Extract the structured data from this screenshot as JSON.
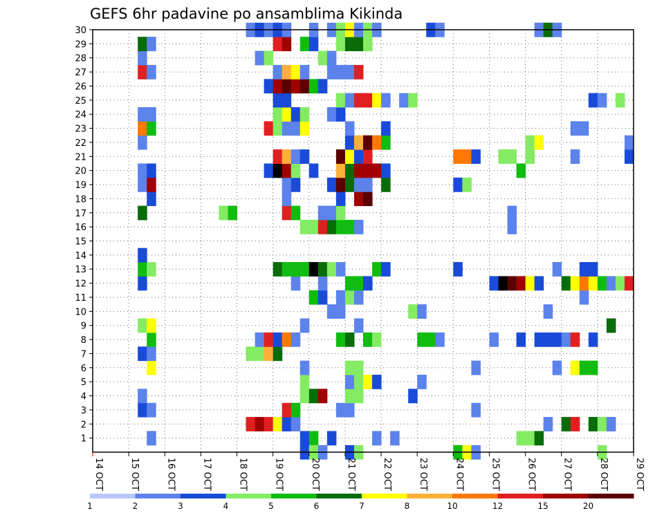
{
  "chart_data": {
    "type": "heatmap",
    "title": "GEFS 6hr padavine po ansamblima Kikinda",
    "xlabel": "",
    "ylabel": "",
    "x_ticks": [
      "14 OCT",
      "15 OCT",
      "16 OCT",
      "17 OCT",
      "18 OCT",
      "19 OCT",
      "20 OCT",
      "21 OCT",
      "22 OCT",
      "23 OCT",
      "24 OCT",
      "25 OCT",
      "26 OCT",
      "27 OCT",
      "28 OCT",
      "29 OCT"
    ],
    "y_ticks": [
      1,
      2,
      3,
      4,
      5,
      6,
      7,
      8,
      9,
      10,
      11,
      12,
      13,
      14,
      15,
      16,
      17,
      18,
      19,
      20,
      21,
      22,
      23,
      24,
      25,
      26,
      27,
      28,
      29,
      30
    ],
    "x_range": [
      0,
      60
    ],
    "y_range": [
      0,
      30
    ],
    "steps_per_day": 4,
    "grid": true,
    "legend_position": "bottom",
    "colorbar": {
      "labels": [
        "1",
        "2",
        "3",
        "4",
        "5",
        "6",
        "7",
        "8",
        "10",
        "12",
        "15",
        "20"
      ],
      "colors": [
        "#b8c8f8",
        "#5c82ec",
        "#1a4bd8",
        "#84ec62",
        "#10bc10",
        "#086c08",
        "#ffff00",
        "#ffb038",
        "#ff7800",
        "#e02020",
        "#a00000",
        "#5a0000"
      ]
    },
    "cells": [
      [
        6,
        1,
        1
      ],
      [
        23,
        1,
        2
      ],
      [
        24,
        1,
        4
      ],
      [
        26,
        1,
        2
      ],
      [
        31,
        1,
        1
      ],
      [
        33,
        1,
        1
      ],
      [
        47,
        1,
        3
      ],
      [
        48,
        1,
        3
      ],
      [
        49,
        1,
        5
      ],
      [
        17,
        2,
        9
      ],
      [
        18,
        2,
        10
      ],
      [
        19,
        2,
        9
      ],
      [
        20,
        2,
        6
      ],
      [
        21,
        2,
        2
      ],
      [
        22,
        2,
        1
      ],
      [
        50,
        2,
        1
      ],
      [
        52,
        2,
        5
      ],
      [
        53,
        2,
        9
      ],
      [
        55,
        2,
        5
      ],
      [
        56,
        2,
        3
      ],
      [
        57,
        2,
        1
      ],
      [
        5,
        3,
        2
      ],
      [
        6,
        3,
        1
      ],
      [
        21,
        3,
        9
      ],
      [
        22,
        3,
        4
      ],
      [
        27,
        3,
        1
      ],
      [
        28,
        3,
        1
      ],
      [
        42,
        3,
        1
      ],
      [
        5,
        4,
        1
      ],
      [
        23,
        4,
        3
      ],
      [
        24,
        4,
        5
      ],
      [
        25,
        4,
        10
      ],
      [
        28,
        4,
        3
      ],
      [
        29,
        4,
        3
      ],
      [
        35,
        4,
        2
      ],
      [
        23,
        5,
        3
      ],
      [
        28,
        5,
        1
      ],
      [
        29,
        5,
        3
      ],
      [
        30,
        5,
        6
      ],
      [
        31,
        5,
        2
      ],
      [
        36,
        5,
        1
      ],
      [
        6,
        6,
        6
      ],
      [
        23,
        6,
        1
      ],
      [
        28,
        6,
        3
      ],
      [
        29,
        6,
        3
      ],
      [
        42,
        6,
        1
      ],
      [
        51,
        6,
        1
      ],
      [
        53,
        6,
        6
      ],
      [
        54,
        6,
        4
      ],
      [
        55,
        6,
        4
      ],
      [
        5,
        7,
        2
      ],
      [
        6,
        7,
        1
      ],
      [
        17,
        7,
        3
      ],
      [
        18,
        7,
        3
      ],
      [
        19,
        7,
        7
      ],
      [
        20,
        7,
        5
      ],
      [
        6,
        8,
        4
      ],
      [
        18,
        8,
        1
      ],
      [
        19,
        8,
        9
      ],
      [
        20,
        8,
        2
      ],
      [
        21,
        8,
        8
      ],
      [
        22,
        8,
        1
      ],
      [
        27,
        8,
        4
      ],
      [
        28,
        8,
        5
      ],
      [
        30,
        8,
        4
      ],
      [
        31,
        8,
        3
      ],
      [
        36,
        8,
        4
      ],
      [
        37,
        8,
        4
      ],
      [
        38,
        8,
        1
      ],
      [
        44,
        8,
        1
      ],
      [
        47,
        8,
        2
      ],
      [
        49,
        8,
        2
      ],
      [
        50,
        8,
        2
      ],
      [
        51,
        8,
        2
      ],
      [
        52,
        8,
        1
      ],
      [
        53,
        8,
        9
      ],
      [
        55,
        8,
        2
      ],
      [
        5,
        9,
        3
      ],
      [
        6,
        9,
        6
      ],
      [
        23,
        9,
        1
      ],
      [
        29,
        9,
        1
      ],
      [
        57,
        9,
        5
      ],
      [
        26,
        10,
        1
      ],
      [
        27,
        10,
        1
      ],
      [
        35,
        10,
        3
      ],
      [
        36,
        10,
        1
      ],
      [
        50,
        10,
        1
      ],
      [
        24,
        11,
        4
      ],
      [
        25,
        11,
        2
      ],
      [
        27,
        11,
        1
      ],
      [
        28,
        11,
        3
      ],
      [
        29,
        11,
        1
      ],
      [
        54,
        11,
        1
      ],
      [
        5,
        12,
        2
      ],
      [
        22,
        12,
        1
      ],
      [
        25,
        12,
        1
      ],
      [
        28,
        12,
        4
      ],
      [
        29,
        12,
        4
      ],
      [
        30,
        12,
        2
      ],
      [
        44,
        12,
        2
      ],
      [
        45,
        12,
        12
      ],
      [
        46,
        12,
        11
      ],
      [
        47,
        12,
        10
      ],
      [
        48,
        12,
        6
      ],
      [
        49,
        12,
        2
      ],
      [
        52,
        12,
        5
      ],
      [
        53,
        12,
        6
      ],
      [
        54,
        12,
        8
      ],
      [
        55,
        12,
        6
      ],
      [
        56,
        12,
        4
      ],
      [
        57,
        12,
        1
      ],
      [
        58,
        12,
        3
      ],
      [
        59,
        12,
        9
      ],
      [
        5,
        13,
        4
      ],
      [
        6,
        13,
        3
      ],
      [
        20,
        13,
        5
      ],
      [
        21,
        13,
        4
      ],
      [
        22,
        13,
        4
      ],
      [
        23,
        13,
        4
      ],
      [
        24,
        13,
        12
      ],
      [
        25,
        13,
        5
      ],
      [
        26,
        13,
        3
      ],
      [
        27,
        13,
        1
      ],
      [
        31,
        13,
        4
      ],
      [
        32,
        13,
        2
      ],
      [
        40,
        13,
        2
      ],
      [
        51,
        13,
        1
      ],
      [
        54,
        13,
        2
      ],
      [
        55,
        13,
        2
      ],
      [
        5,
        14,
        2
      ],
      [
        23,
        16,
        3
      ],
      [
        24,
        16,
        3
      ],
      [
        25,
        16,
        9
      ],
      [
        26,
        16,
        5
      ],
      [
        27,
        16,
        4
      ],
      [
        28,
        16,
        4
      ],
      [
        29,
        16,
        1
      ],
      [
        46,
        16,
        1
      ],
      [
        5,
        17,
        5
      ],
      [
        14,
        17,
        3
      ],
      [
        15,
        17,
        4
      ],
      [
        21,
        17,
        9
      ],
      [
        22,
        17,
        4
      ],
      [
        25,
        17,
        1
      ],
      [
        26,
        17,
        1
      ],
      [
        27,
        17,
        3
      ],
      [
        46,
        17,
        1
      ],
      [
        6,
        18,
        2
      ],
      [
        21,
        18,
        1
      ],
      [
        27,
        18,
        2
      ],
      [
        29,
        18,
        10
      ],
      [
        30,
        18,
        11
      ],
      [
        5,
        19,
        1
      ],
      [
        6,
        19,
        10
      ],
      [
        21,
        19,
        1
      ],
      [
        22,
        19,
        2
      ],
      [
        26,
        19,
        2
      ],
      [
        27,
        19,
        11
      ],
      [
        28,
        19,
        5
      ],
      [
        29,
        19,
        1
      ],
      [
        30,
        19,
        1
      ],
      [
        32,
        19,
        5
      ],
      [
        40,
        19,
        2
      ],
      [
        41,
        19,
        3
      ],
      [
        5,
        20,
        1
      ],
      [
        6,
        20,
        2
      ],
      [
        19,
        20,
        2
      ],
      [
        20,
        20,
        12
      ],
      [
        21,
        20,
        10
      ],
      [
        22,
        20,
        3
      ],
      [
        24,
        20,
        2
      ],
      [
        27,
        20,
        7
      ],
      [
        28,
        20,
        5
      ],
      [
        29,
        20,
        10
      ],
      [
        30,
        20,
        10
      ],
      [
        31,
        20,
        10
      ],
      [
        32,
        20,
        2
      ],
      [
        47,
        20,
        4
      ],
      [
        20,
        21,
        9
      ],
      [
        21,
        21,
        7
      ],
      [
        22,
        21,
        1
      ],
      [
        23,
        21,
        2
      ],
      [
        27,
        21,
        11
      ],
      [
        28,
        21,
        6
      ],
      [
        29,
        21,
        2
      ],
      [
        30,
        21,
        9
      ],
      [
        40,
        21,
        8
      ],
      [
        41,
        21,
        8
      ],
      [
        42,
        21,
        2
      ],
      [
        45,
        21,
        3
      ],
      [
        46,
        21,
        3
      ],
      [
        48,
        21,
        3
      ],
      [
        53,
        21,
        1
      ],
      [
        59,
        21,
        2
      ],
      [
        5,
        22,
        1
      ],
      [
        28,
        22,
        2
      ],
      [
        29,
        22,
        7
      ],
      [
        30,
        22,
        11
      ],
      [
        31,
        22,
        8
      ],
      [
        32,
        22,
        4
      ],
      [
        48,
        22,
        3
      ],
      [
        49,
        22,
        6
      ],
      [
        59,
        22,
        1
      ],
      [
        5,
        23,
        8
      ],
      [
        6,
        23,
        4
      ],
      [
        19,
        23,
        9
      ],
      [
        20,
        23,
        3
      ],
      [
        21,
        23,
        1
      ],
      [
        22,
        23,
        1
      ],
      [
        23,
        23,
        6
      ],
      [
        28,
        23,
        1
      ],
      [
        32,
        23,
        2
      ],
      [
        53,
        23,
        1
      ],
      [
        54,
        23,
        1
      ],
      [
        5,
        24,
        1
      ],
      [
        6,
        24,
        1
      ],
      [
        20,
        24,
        3
      ],
      [
        21,
        24,
        6
      ],
      [
        22,
        24,
        2
      ],
      [
        23,
        24,
        3
      ],
      [
        26,
        24,
        1
      ],
      [
        27,
        24,
        2
      ],
      [
        20,
        25,
        2
      ],
      [
        21,
        25,
        2
      ],
      [
        27,
        25,
        3
      ],
      [
        28,
        25,
        1
      ],
      [
        29,
        25,
        9
      ],
      [
        30,
        25,
        9
      ],
      [
        31,
        25,
        6
      ],
      [
        32,
        25,
        1
      ],
      [
        34,
        25,
        1
      ],
      [
        35,
        25,
        3
      ],
      [
        55,
        25,
        2
      ],
      [
        56,
        25,
        1
      ],
      [
        58,
        25,
        3
      ],
      [
        19,
        26,
        2
      ],
      [
        20,
        26,
        10
      ],
      [
        21,
        26,
        11
      ],
      [
        22,
        26,
        10
      ],
      [
        23,
        26,
        11
      ],
      [
        24,
        26,
        4
      ],
      [
        25,
        26,
        2
      ],
      [
        5,
        27,
        9
      ],
      [
        6,
        27,
        1
      ],
      [
        20,
        27,
        1
      ],
      [
        21,
        27,
        7
      ],
      [
        22,
        27,
        6
      ],
      [
        23,
        27,
        1
      ],
      [
        26,
        27,
        1
      ],
      [
        27,
        27,
        1
      ],
      [
        28,
        27,
        1
      ],
      [
        29,
        27,
        9
      ],
      [
        5,
        28,
        1
      ],
      [
        18,
        28,
        1
      ],
      [
        19,
        28,
        3
      ],
      [
        25,
        28,
        3
      ],
      [
        26,
        28,
        1
      ],
      [
        5,
        29,
        5
      ],
      [
        6,
        29,
        1
      ],
      [
        20,
        29,
        9
      ],
      [
        21,
        29,
        10
      ],
      [
        23,
        29,
        4
      ],
      [
        24,
        29,
        2
      ],
      [
        27,
        29,
        3
      ],
      [
        28,
        29,
        5
      ],
      [
        29,
        29,
        5
      ],
      [
        30,
        29,
        3
      ],
      [
        17,
        30,
        1
      ],
      [
        18,
        30,
        2
      ],
      [
        19,
        30,
        1
      ],
      [
        20,
        30,
        2
      ],
      [
        21,
        30,
        1
      ],
      [
        24,
        30,
        1
      ],
      [
        26,
        30,
        1
      ],
      [
        27,
        30,
        3
      ],
      [
        28,
        30,
        6
      ],
      [
        29,
        30,
        1
      ],
      [
        30,
        30,
        3
      ],
      [
        31,
        30,
        1
      ],
      [
        37,
        30,
        2
      ],
      [
        38,
        30,
        1
      ],
      [
        49,
        30,
        1
      ],
      [
        50,
        30,
        5
      ],
      [
        51,
        30,
        1
      ],
      [
        23,
        0,
        2
      ],
      [
        24,
        0,
        3
      ],
      [
        25,
        0,
        1
      ],
      [
        28,
        0,
        2
      ],
      [
        29,
        0,
        3
      ],
      [
        40,
        0,
        4
      ],
      [
        41,
        0,
        6
      ],
      [
        42,
        0,
        1
      ],
      [
        56,
        0,
        3
      ]
    ]
  }
}
